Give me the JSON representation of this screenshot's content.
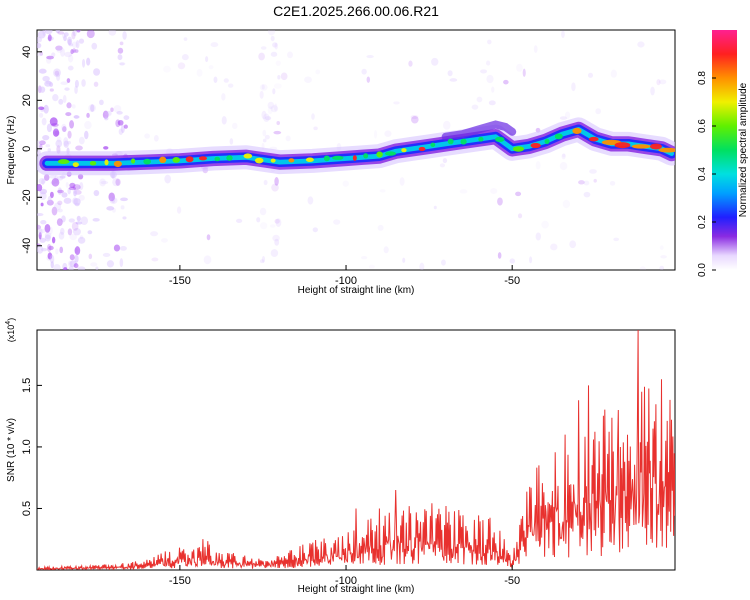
{
  "title": "C2E1.2025.266.00.06.R21",
  "colors": {
    "trace": "#e8312e",
    "axis": "#000000"
  },
  "chart_data": [
    {
      "type": "heatmap",
      "xlabel": "Height of straight line (km)",
      "ylabel": "Frequency (Hz)",
      "xlim": [
        -193,
        -1
      ],
      "ylim": [
        -50,
        49
      ],
      "xticks": [
        -150,
        -100,
        -50
      ],
      "yticks": [
        40,
        20,
        0,
        -20,
        -40
      ],
      "ridge": {
        "x": [
          -190,
          -180,
          -170,
          -160,
          -150,
          -140,
          -130,
          -120,
          -110,
          -100,
          -95,
          -90,
          -85,
          -80,
          -75,
          -70,
          -65,
          -60,
          -55,
          -50,
          -45,
          -40,
          -35,
          -30,
          -25,
          -20,
          -15,
          -10,
          -5,
          -2
        ],
        "freq": [
          -6,
          -6,
          -6,
          -5.5,
          -5,
          -4,
          -3.5,
          -5.5,
          -5,
          -4,
          -3.5,
          -3,
          -1,
          0,
          1,
          2,
          3,
          4,
          5,
          0,
          1,
          3,
          6,
          8,
          4,
          2,
          2,
          1,
          0,
          -2
        ]
      },
      "upper_branch": {
        "x": [
          -70,
          -65,
          -60,
          -55,
          -52,
          -50
        ],
        "freq": [
          5,
          6,
          8,
          10,
          9,
          7
        ]
      },
      "colorbar": {
        "label": "Normalized spectral amplitude",
        "range": [
          0,
          1
        ],
        "ticks": [
          0.0,
          0.2,
          0.4,
          0.6,
          0.8
        ]
      }
    },
    {
      "type": "line",
      "xlabel": "Height of straight line (km)",
      "ylabel": "SNR (10 * v/v)",
      "y_multiplier": "(x10",
      "y_multiplier_exp": "4",
      "y_multiplier_close": ")",
      "xlim": [
        -193,
        -1
      ],
      "ylim": [
        0,
        1.95
      ],
      "xticks": [
        -150,
        -100,
        -50
      ],
      "yticks": [
        0.5,
        1.0,
        1.5
      ],
      "envelope": {
        "x": [
          -193,
          -180,
          -170,
          -160,
          -155,
          -150,
          -145,
          -142,
          -140,
          -135,
          -130,
          -125,
          -120,
          -115,
          -110,
          -105,
          -100,
          -95,
          -90,
          -85,
          -80,
          -75,
          -70,
          -65,
          -60,
          -55,
          -50,
          -48,
          -45,
          -40,
          -35,
          -30,
          -25,
          -20,
          -15,
          -10,
          -5,
          -1
        ],
        "y": [
          0.02,
          0.03,
          0.04,
          0.07,
          0.12,
          0.17,
          0.15,
          0.22,
          0.12,
          0.13,
          0.1,
          0.08,
          0.1,
          0.16,
          0.2,
          0.24,
          0.28,
          0.35,
          0.4,
          0.42,
          0.44,
          0.5,
          0.4,
          0.42,
          0.38,
          0.34,
          0.1,
          0.3,
          0.65,
          0.8,
          0.9,
          1.0,
          1.1,
          1.15,
          1.3,
          1.35,
          1.3,
          1.25
        ]
      },
      "spikes": [
        {
          "x": -143,
          "y": 0.25
        },
        {
          "x": -97,
          "y": 0.5
        },
        {
          "x": -90,
          "y": 0.5
        },
        {
          "x": -85,
          "y": 0.65
        },
        {
          "x": -70,
          "y": 0.52
        },
        {
          "x": -42,
          "y": 0.85
        },
        {
          "x": -30,
          "y": 1.38
        },
        {
          "x": -27,
          "y": 1.5
        },
        {
          "x": -18,
          "y": 1.3
        },
        {
          "x": -12,
          "y": 1.95
        },
        {
          "x": -5,
          "y": 1.55
        }
      ]
    }
  ]
}
